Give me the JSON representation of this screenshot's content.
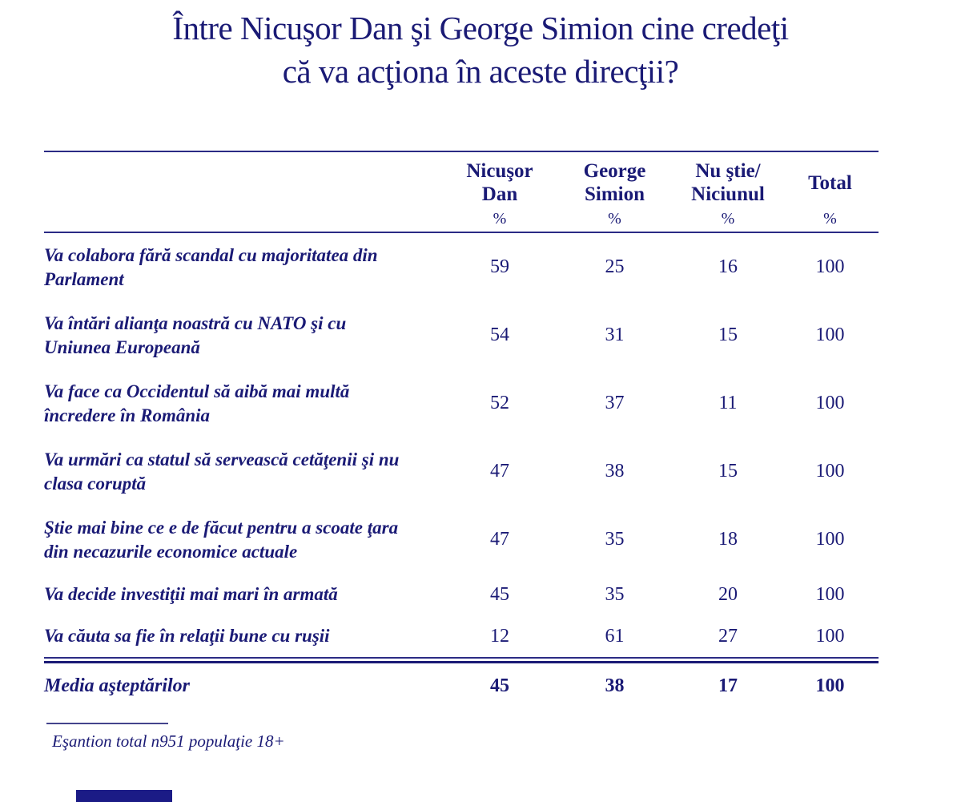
{
  "title": {
    "line1": "Între Nicuşor Dan şi George Simion cine credeţi",
    "line2": "că va acţiona în aceste direcţii?"
  },
  "table": {
    "columns": [
      {
        "line1": "Nicuşor",
        "line2": "Dan",
        "unit": "%"
      },
      {
        "line1": "George",
        "line2": "Simion",
        "unit": "%"
      },
      {
        "line1": "Nu ştie/",
        "line2": "Niciunul",
        "unit": "%"
      },
      {
        "line1": "Total",
        "line2": "",
        "unit": "%"
      }
    ],
    "rows": [
      {
        "label": "Va colabora fără scandal cu majoritatea din Parlament",
        "values": [
          "59",
          "25",
          "16",
          "100"
        ]
      },
      {
        "label": "Va întări alianţa noastră cu NATO şi cu Uniunea Europeană",
        "values": [
          "54",
          "31",
          "15",
          "100"
        ]
      },
      {
        "label": "Va face ca Occidentul să aibă mai multă încredere în România",
        "values": [
          "52",
          "37",
          "11",
          "100"
        ]
      },
      {
        "label": "Va urmări ca statul să servească cetăţenii şi nu clasa coruptă",
        "values": [
          "47",
          "38",
          "15",
          "100"
        ]
      },
      {
        "label": "Ştie mai bine ce e de făcut pentru a scoate ţara din necazurile economice actuale",
        "values": [
          "47",
          "35",
          "18",
          "100"
        ]
      },
      {
        "label": "Va decide investiţii mai mari în armată",
        "values": [
          "45",
          "35",
          "20",
          "100"
        ]
      },
      {
        "label": "Va căuta sa fie în relaţii bune cu ruşii",
        "values": [
          "12",
          "61",
          "27",
          "100"
        ]
      }
    ],
    "summary_row": {
      "label": "Media aşteptărilor",
      "values": [
        "45",
        "38",
        "17",
        "100"
      ]
    }
  },
  "footnote": {
    "text": "Eşantion total n951 populaţie 18+"
  },
  "colors": {
    "text_navy": "#1a1a75",
    "rule_navy": "#2b2b85",
    "accent_bar": "#1b1b86"
  }
}
